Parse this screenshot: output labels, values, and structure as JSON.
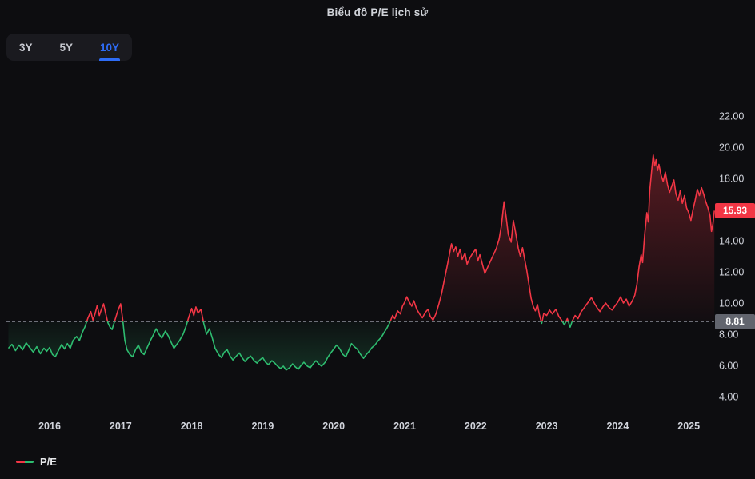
{
  "title": "Biểu đồ P/E lịch sử",
  "range_selector": {
    "options": [
      {
        "label": "3Y",
        "active": false
      },
      {
        "label": "5Y",
        "active": false
      },
      {
        "label": "10Y",
        "active": true
      }
    ]
  },
  "legend": {
    "label": "P/E"
  },
  "colors": {
    "up": "#f23645",
    "down": "#2ebd70",
    "accent_blue": "#2e6cf6",
    "badge_gray": "#62656e",
    "baseline_dash": "#8d909b",
    "axis_text": "#d1d4dc",
    "background": "#0d0d10",
    "panel": "#1a1a1f"
  },
  "chart_data": {
    "type": "line",
    "title": "Biểu đồ P/E lịch sử",
    "series_name": "P/E",
    "baseline": 8.81,
    "baseline_label": "8.81",
    "last_value": 15.93,
    "last_value_label": "15.93",
    "ylim": [
      3.8,
      22.8
    ],
    "xlim": [
      2015.4,
      2025.4
    ],
    "grid": false,
    "legend_position": "bottom-left",
    "y_ticks": [
      {
        "value": 22,
        "label": "22.00"
      },
      {
        "value": 20,
        "label": "20.00"
      },
      {
        "value": 18,
        "label": "18.00"
      },
      {
        "value": 14,
        "label": "14.00"
      },
      {
        "value": 12,
        "label": "12.00"
      },
      {
        "value": 10,
        "label": "10.00"
      },
      {
        "value": 8,
        "label": "8.00"
      },
      {
        "value": 6,
        "label": "6.00"
      },
      {
        "value": 4,
        "label": "4.00"
      }
    ],
    "x_ticks": [
      {
        "value": 2016,
        "label": "2016"
      },
      {
        "value": 2017,
        "label": "2017"
      },
      {
        "value": 2018,
        "label": "2018"
      },
      {
        "value": 2019,
        "label": "2019"
      },
      {
        "value": 2020,
        "label": "2020"
      },
      {
        "value": 2021,
        "label": "2021"
      },
      {
        "value": 2022,
        "label": "2022"
      },
      {
        "value": 2023,
        "label": "2023"
      },
      {
        "value": 2024,
        "label": "2024"
      },
      {
        "value": 2025,
        "label": "2025"
      }
    ],
    "points": [
      [
        2015.42,
        7.1
      ],
      [
        2015.47,
        7.35
      ],
      [
        2015.52,
        6.95
      ],
      [
        2015.57,
        7.3
      ],
      [
        2015.62,
        7.0
      ],
      [
        2015.67,
        7.45
      ],
      [
        2015.72,
        7.15
      ],
      [
        2015.77,
        6.85
      ],
      [
        2015.82,
        7.2
      ],
      [
        2015.87,
        6.75
      ],
      [
        2015.92,
        7.1
      ],
      [
        2015.96,
        6.9
      ],
      [
        2016.0,
        7.15
      ],
      [
        2016.04,
        6.7
      ],
      [
        2016.08,
        6.55
      ],
      [
        2016.13,
        7.0
      ],
      [
        2016.17,
        7.35
      ],
      [
        2016.21,
        7.05
      ],
      [
        2016.25,
        7.4
      ],
      [
        2016.29,
        7.1
      ],
      [
        2016.33,
        7.6
      ],
      [
        2016.38,
        7.85
      ],
      [
        2016.42,
        7.6
      ],
      [
        2016.46,
        8.1
      ],
      [
        2016.5,
        8.5
      ],
      [
        2016.54,
        9.05
      ],
      [
        2016.58,
        9.45
      ],
      [
        2016.61,
        8.9
      ],
      [
        2016.64,
        9.3
      ],
      [
        2016.67,
        9.85
      ],
      [
        2016.7,
        9.2
      ],
      [
        2016.73,
        9.6
      ],
      [
        2016.76,
        9.95
      ],
      [
        2016.79,
        9.3
      ],
      [
        2016.82,
        8.75
      ],
      [
        2016.85,
        8.45
      ],
      [
        2016.88,
        8.3
      ],
      [
        2016.92,
        8.9
      ],
      [
        2016.96,
        9.5
      ],
      [
        2017.0,
        9.95
      ],
      [
        2017.03,
        8.9
      ],
      [
        2017.06,
        7.6
      ],
      [
        2017.09,
        7.0
      ],
      [
        2017.13,
        6.7
      ],
      [
        2017.17,
        6.55
      ],
      [
        2017.21,
        7.0
      ],
      [
        2017.25,
        7.3
      ],
      [
        2017.29,
        6.85
      ],
      [
        2017.33,
        6.7
      ],
      [
        2017.38,
        7.2
      ],
      [
        2017.42,
        7.6
      ],
      [
        2017.46,
        7.95
      ],
      [
        2017.5,
        8.35
      ],
      [
        2017.54,
        8.0
      ],
      [
        2017.58,
        7.75
      ],
      [
        2017.63,
        8.2
      ],
      [
        2017.67,
        7.9
      ],
      [
        2017.71,
        7.5
      ],
      [
        2017.75,
        7.1
      ],
      [
        2017.79,
        7.35
      ],
      [
        2017.83,
        7.6
      ],
      [
        2017.88,
        8.0
      ],
      [
        2017.92,
        8.5
      ],
      [
        2017.96,
        9.1
      ],
      [
        2018.0,
        9.65
      ],
      [
        2018.03,
        9.2
      ],
      [
        2018.06,
        9.75
      ],
      [
        2018.09,
        9.35
      ],
      [
        2018.13,
        9.6
      ],
      [
        2018.17,
        8.7
      ],
      [
        2018.21,
        8.0
      ],
      [
        2018.25,
        8.35
      ],
      [
        2018.29,
        7.75
      ],
      [
        2018.33,
        7.1
      ],
      [
        2018.38,
        6.7
      ],
      [
        2018.42,
        6.5
      ],
      [
        2018.46,
        6.85
      ],
      [
        2018.5,
        7.0
      ],
      [
        2018.54,
        6.6
      ],
      [
        2018.58,
        6.35
      ],
      [
        2018.63,
        6.6
      ],
      [
        2018.67,
        6.8
      ],
      [
        2018.71,
        6.5
      ],
      [
        2018.75,
        6.25
      ],
      [
        2018.79,
        6.45
      ],
      [
        2018.83,
        6.6
      ],
      [
        2018.88,
        6.3
      ],
      [
        2018.92,
        6.15
      ],
      [
        2018.96,
        6.35
      ],
      [
        2019.0,
        6.5
      ],
      [
        2019.04,
        6.2
      ],
      [
        2019.08,
        6.05
      ],
      [
        2019.13,
        6.3
      ],
      [
        2019.17,
        6.15
      ],
      [
        2019.21,
        5.95
      ],
      [
        2019.25,
        5.8
      ],
      [
        2019.29,
        5.95
      ],
      [
        2019.33,
        5.7
      ],
      [
        2019.38,
        5.85
      ],
      [
        2019.42,
        6.1
      ],
      [
        2019.46,
        5.9
      ],
      [
        2019.5,
        5.75
      ],
      [
        2019.54,
        6.0
      ],
      [
        2019.58,
        6.2
      ],
      [
        2019.63,
        5.95
      ],
      [
        2019.67,
        5.85
      ],
      [
        2019.71,
        6.1
      ],
      [
        2019.75,
        6.3
      ],
      [
        2019.79,
        6.1
      ],
      [
        2019.83,
        5.95
      ],
      [
        2019.88,
        6.2
      ],
      [
        2019.92,
        6.55
      ],
      [
        2019.96,
        6.8
      ],
      [
        2020.0,
        7.05
      ],
      [
        2020.04,
        7.3
      ],
      [
        2020.08,
        7.1
      ],
      [
        2020.13,
        6.7
      ],
      [
        2020.17,
        6.55
      ],
      [
        2020.21,
        6.95
      ],
      [
        2020.25,
        7.4
      ],
      [
        2020.29,
        7.2
      ],
      [
        2020.33,
        7.05
      ],
      [
        2020.38,
        6.7
      ],
      [
        2020.42,
        6.45
      ],
      [
        2020.46,
        6.7
      ],
      [
        2020.5,
        6.9
      ],
      [
        2020.54,
        7.15
      ],
      [
        2020.58,
        7.3
      ],
      [
        2020.63,
        7.6
      ],
      [
        2020.67,
        7.8
      ],
      [
        2020.71,
        8.1
      ],
      [
        2020.75,
        8.4
      ],
      [
        2020.79,
        8.75
      ],
      [
        2020.83,
        9.2
      ],
      [
        2020.86,
        9.0
      ],
      [
        2020.9,
        9.5
      ],
      [
        2020.94,
        9.3
      ],
      [
        2020.97,
        9.8
      ],
      [
        2021.0,
        10.05
      ],
      [
        2021.03,
        10.4
      ],
      [
        2021.06,
        10.1
      ],
      [
        2021.1,
        9.8
      ],
      [
        2021.13,
        10.15
      ],
      [
        2021.17,
        9.6
      ],
      [
        2021.21,
        9.3
      ],
      [
        2021.25,
        9.05
      ],
      [
        2021.29,
        9.4
      ],
      [
        2021.33,
        9.6
      ],
      [
        2021.36,
        9.15
      ],
      [
        2021.4,
        8.9
      ],
      [
        2021.44,
        9.3
      ],
      [
        2021.48,
        9.9
      ],
      [
        2021.52,
        10.6
      ],
      [
        2021.56,
        11.5
      ],
      [
        2021.6,
        12.4
      ],
      [
        2021.63,
        13.1
      ],
      [
        2021.66,
        13.8
      ],
      [
        2021.69,
        13.3
      ],
      [
        2021.72,
        13.6
      ],
      [
        2021.75,
        13.0
      ],
      [
        2021.78,
        13.45
      ],
      [
        2021.81,
        12.8
      ],
      [
        2021.85,
        13.2
      ],
      [
        2021.88,
        12.5
      ],
      [
        2021.92,
        12.9
      ],
      [
        2021.96,
        13.2
      ],
      [
        2022.0,
        13.45
      ],
      [
        2022.03,
        12.7
      ],
      [
        2022.06,
        13.1
      ],
      [
        2022.1,
        12.4
      ],
      [
        2022.13,
        11.9
      ],
      [
        2022.17,
        12.3
      ],
      [
        2022.21,
        12.7
      ],
      [
        2022.25,
        13.1
      ],
      [
        2022.29,
        13.5
      ],
      [
        2022.33,
        14.1
      ],
      [
        2022.36,
        14.9
      ],
      [
        2022.4,
        16.5
      ],
      [
        2022.43,
        15.5
      ],
      [
        2022.46,
        14.4
      ],
      [
        2022.5,
        13.9
      ],
      [
        2022.53,
        15.3
      ],
      [
        2022.56,
        14.6
      ],
      [
        2022.6,
        13.5
      ],
      [
        2022.63,
        13.0
      ],
      [
        2022.66,
        13.55
      ],
      [
        2022.69,
        12.8
      ],
      [
        2022.72,
        12.1
      ],
      [
        2022.75,
        11.2
      ],
      [
        2022.78,
        10.3
      ],
      [
        2022.81,
        9.8
      ],
      [
        2022.84,
        9.5
      ],
      [
        2022.87,
        9.9
      ],
      [
        2022.9,
        9.2
      ],
      [
        2022.93,
        8.7
      ],
      [
        2022.96,
        9.35
      ],
      [
        2023.0,
        9.2
      ],
      [
        2023.04,
        9.55
      ],
      [
        2023.08,
        9.3
      ],
      [
        2023.13,
        9.6
      ],
      [
        2023.17,
        9.15
      ],
      [
        2023.21,
        8.9
      ],
      [
        2023.25,
        8.6
      ],
      [
        2023.29,
        9.0
      ],
      [
        2023.33,
        8.45
      ],
      [
        2023.36,
        8.85
      ],
      [
        2023.4,
        9.2
      ],
      [
        2023.44,
        9.0
      ],
      [
        2023.48,
        9.4
      ],
      [
        2023.52,
        9.65
      ],
      [
        2023.56,
        9.9
      ],
      [
        2023.6,
        10.15
      ],
      [
        2023.63,
        10.35
      ],
      [
        2023.67,
        10.0
      ],
      [
        2023.71,
        9.7
      ],
      [
        2023.75,
        9.45
      ],
      [
        2023.79,
        9.75
      ],
      [
        2023.83,
        10.0
      ],
      [
        2023.88,
        9.7
      ],
      [
        2023.92,
        9.55
      ],
      [
        2023.96,
        9.8
      ],
      [
        2024.0,
        10.05
      ],
      [
        2024.04,
        10.4
      ],
      [
        2024.08,
        10.0
      ],
      [
        2024.12,
        10.25
      ],
      [
        2024.16,
        9.8
      ],
      [
        2024.2,
        10.1
      ],
      [
        2024.24,
        10.5
      ],
      [
        2024.27,
        11.2
      ],
      [
        2024.3,
        12.3
      ],
      [
        2024.33,
        13.1
      ],
      [
        2024.35,
        12.6
      ],
      [
        2024.38,
        14.4
      ],
      [
        2024.41,
        15.8
      ],
      [
        2024.43,
        15.2
      ],
      [
        2024.45,
        17.2
      ],
      [
        2024.48,
        18.6
      ],
      [
        2024.5,
        19.5
      ],
      [
        2024.52,
        18.8
      ],
      [
        2024.54,
        19.2
      ],
      [
        2024.56,
        18.5
      ],
      [
        2024.58,
        18.9
      ],
      [
        2024.61,
        18.2
      ],
      [
        2024.64,
        17.8
      ],
      [
        2024.67,
        18.4
      ],
      [
        2024.7,
        17.6
      ],
      [
        2024.73,
        17.1
      ],
      [
        2024.76,
        17.5
      ],
      [
        2024.79,
        17.9
      ],
      [
        2024.82,
        17.0
      ],
      [
        2024.85,
        16.6
      ],
      [
        2024.88,
        17.2
      ],
      [
        2024.91,
        16.4
      ],
      [
        2024.94,
        16.9
      ],
      [
        2024.97,
        16.1
      ],
      [
        2025.0,
        15.8
      ],
      [
        2025.03,
        15.3
      ],
      [
        2025.06,
        16.0
      ],
      [
        2025.09,
        16.6
      ],
      [
        2025.12,
        17.3
      ],
      [
        2025.15,
        16.9
      ],
      [
        2025.18,
        17.4
      ],
      [
        2025.21,
        17.0
      ],
      [
        2025.24,
        16.5
      ],
      [
        2025.27,
        16.1
      ],
      [
        2025.3,
        15.6
      ],
      [
        2025.32,
        14.6
      ],
      [
        2025.34,
        15.1
      ],
      [
        2025.36,
        15.93
      ]
    ]
  }
}
